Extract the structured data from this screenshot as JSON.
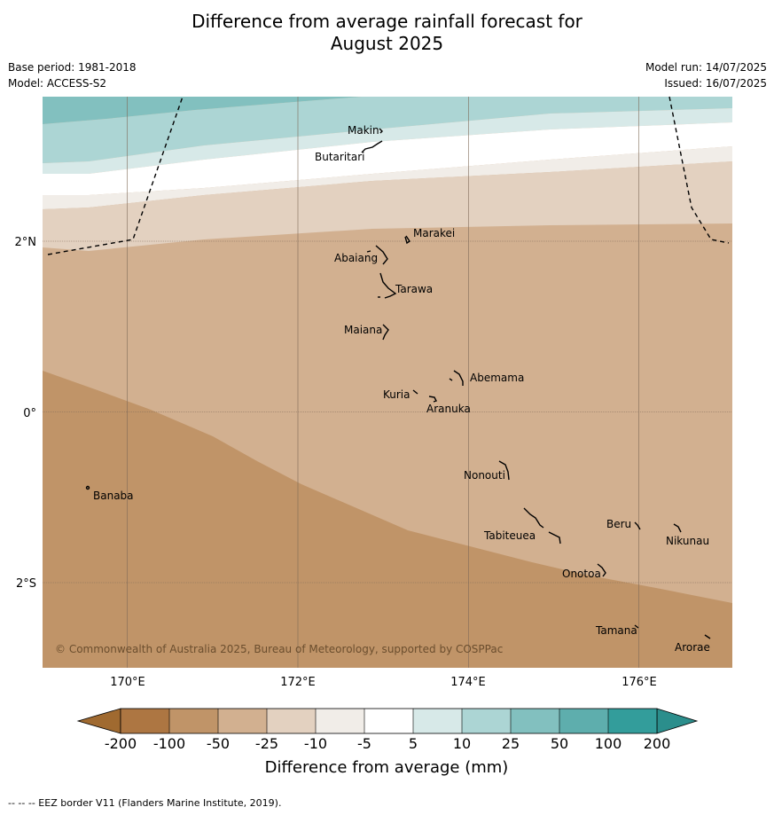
{
  "title_line1": "Difference from average rainfall forecast for",
  "title_line2": "August 2025",
  "base_period": "Base period: 1981-2018",
  "model": "Model: ACCESS-S2",
  "model_run": "Model run: 14/07/2025",
  "issued": "Issued: 16/07/2025",
  "copyright": "© Commonwealth of Australia 2025, Bureau of Meteorology, supported by COSPPac",
  "lat_labels": [
    "2°N",
    "0°",
    "2°S"
  ],
  "lon_labels": [
    "170°E",
    "172°E",
    "174°E",
    "176°E"
  ],
  "islands": [
    {
      "name": "Makin"
    },
    {
      "name": "Butaritari"
    },
    {
      "name": "Marakei"
    },
    {
      "name": "Abaiang"
    },
    {
      "name": "Tarawa"
    },
    {
      "name": "Maiana"
    },
    {
      "name": "Abemama"
    },
    {
      "name": "Kuria"
    },
    {
      "name": "Aranuka"
    },
    {
      "name": "Nonouti"
    },
    {
      "name": "Banaba"
    },
    {
      "name": "Beru"
    },
    {
      "name": "Nikunau"
    },
    {
      "name": "Tabiteuea"
    },
    {
      "name": "Onotoa"
    },
    {
      "name": "Tamana"
    },
    {
      "name": "Arorae"
    }
  ],
  "colorbar": {
    "ticks": [
      "-200",
      "-100",
      "-50",
      "-25",
      "-10",
      "-5",
      "5",
      "10",
      "25",
      "50",
      "100",
      "200"
    ],
    "colors": [
      "#ad7642",
      "#c09468",
      "#d2b090",
      "#e3d1c0",
      "#f1ede8",
      "#ffffff",
      "#d7e9e8",
      "#acd5d4",
      "#82c0bf",
      "#5eaead",
      "#339d9b"
    ],
    "under_color": "#a06a30",
    "over_color": "#2b8e8c",
    "label": "Difference from average (mm)"
  },
  "footnote": "--  --  -- EEZ border V11 (Flanders Marine Institute, 2019)."
}
